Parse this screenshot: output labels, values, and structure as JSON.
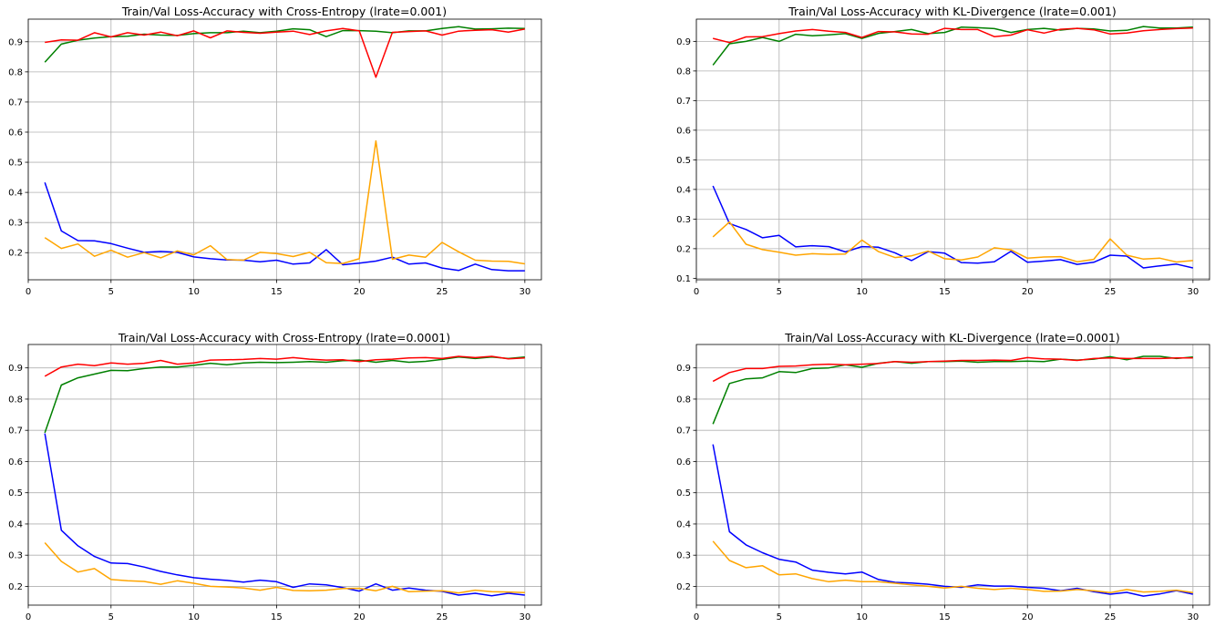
{
  "chart_data": [
    {
      "type": "line",
      "title": "Train/Val Loss-Accuracy with Cross-Entropy (lrate=0.001)",
      "xlim": [
        0,
        31
      ],
      "ylim": [
        0.11,
        0.975
      ],
      "xticks": [
        0,
        5,
        10,
        15,
        20,
        25,
        30
      ],
      "yticks": [
        0.2,
        0.3,
        0.4,
        0.5,
        0.6,
        0.7,
        0.8,
        0.9
      ],
      "grid": true,
      "x": [
        1,
        2,
        3,
        4,
        5,
        6,
        7,
        8,
        9,
        10,
        11,
        12,
        13,
        14,
        15,
        16,
        17,
        18,
        19,
        20,
        21,
        22,
        23,
        24,
        25,
        26,
        27,
        28,
        29,
        30
      ],
      "series": [
        {
          "color": "#008000",
          "values": [
            0.832,
            0.892,
            0.905,
            0.912,
            0.917,
            0.918,
            0.925,
            0.922,
            0.921,
            0.927,
            0.93,
            0.93,
            0.935,
            0.93,
            0.935,
            0.943,
            0.94,
            0.917,
            0.937,
            0.937,
            0.935,
            0.93,
            0.936,
            0.936,
            0.944,
            0.95,
            0.942,
            0.943,
            0.945,
            0.944
          ]
        },
        {
          "color": "#ff0000",
          "values": [
            0.898,
            0.906,
            0.905,
            0.93,
            0.916,
            0.93,
            0.922,
            0.932,
            0.92,
            0.936,
            0.913,
            0.936,
            0.931,
            0.928,
            0.932,
            0.935,
            0.924,
            0.936,
            0.944,
            0.936,
            0.782,
            0.931,
            0.934,
            0.936,
            0.922,
            0.935,
            0.938,
            0.94,
            0.932,
            0.942
          ]
        },
        {
          "color": "#0000ff",
          "values": [
            0.433,
            0.272,
            0.24,
            0.239,
            0.23,
            0.215,
            0.201,
            0.204,
            0.201,
            0.186,
            0.18,
            0.176,
            0.175,
            0.17,
            0.175,
            0.162,
            0.166,
            0.21,
            0.16,
            0.165,
            0.172,
            0.185,
            0.162,
            0.166,
            0.149,
            0.141,
            0.162,
            0.144,
            0.14,
            0.14
          ]
        },
        {
          "color": "#ffa500",
          "values": [
            0.25,
            0.214,
            0.229,
            0.188,
            0.208,
            0.185,
            0.2,
            0.183,
            0.206,
            0.193,
            0.223,
            0.177,
            0.175,
            0.201,
            0.197,
            0.187,
            0.201,
            0.167,
            0.164,
            0.18,
            0.571,
            0.178,
            0.192,
            0.185,
            0.234,
            0.203,
            0.175,
            0.172,
            0.171,
            0.163
          ]
        }
      ]
    },
    {
      "type": "line",
      "title": "Train/Val Loss-Accuracy with KL-Divergence (lrate=0.001)",
      "xlim": [
        0,
        31
      ],
      "ylim": [
        0.095,
        0.975
      ],
      "xticks": [
        0,
        5,
        10,
        15,
        20,
        25,
        30
      ],
      "yticks": [
        0.1,
        0.2,
        0.3,
        0.4,
        0.5,
        0.6,
        0.7,
        0.8,
        0.9
      ],
      "grid": true,
      "x": [
        1,
        2,
        3,
        4,
        5,
        6,
        7,
        8,
        9,
        10,
        11,
        12,
        13,
        14,
        15,
        16,
        17,
        18,
        19,
        20,
        21,
        22,
        23,
        24,
        25,
        26,
        27,
        28,
        29,
        30
      ],
      "series": [
        {
          "color": "#008000",
          "values": [
            0.82,
            0.892,
            0.9,
            0.913,
            0.9,
            0.924,
            0.919,
            0.922,
            0.926,
            0.91,
            0.927,
            0.933,
            0.94,
            0.926,
            0.93,
            0.948,
            0.946,
            0.943,
            0.93,
            0.94,
            0.944,
            0.938,
            0.944,
            0.942,
            0.935,
            0.937,
            0.95,
            0.945,
            0.945,
            0.948
          ]
        },
        {
          "color": "#ff0000",
          "values": [
            0.91,
            0.896,
            0.915,
            0.916,
            0.926,
            0.935,
            0.94,
            0.934,
            0.93,
            0.913,
            0.933,
            0.932,
            0.925,
            0.924,
            0.944,
            0.94,
            0.94,
            0.916,
            0.921,
            0.939,
            0.928,
            0.941,
            0.944,
            0.939,
            0.925,
            0.928,
            0.936,
            0.94,
            0.943,
            0.945
          ]
        },
        {
          "color": "#0000ff",
          "values": [
            0.412,
            0.285,
            0.265,
            0.237,
            0.245,
            0.206,
            0.21,
            0.207,
            0.189,
            0.207,
            0.205,
            0.186,
            0.16,
            0.19,
            0.185,
            0.153,
            0.151,
            0.156,
            0.191,
            0.154,
            0.158,
            0.163,
            0.147,
            0.154,
            0.178,
            0.175,
            0.135,
            0.142,
            0.148,
            0.135
          ]
        },
        {
          "color": "#ffa500",
          "values": [
            0.24,
            0.29,
            0.215,
            0.197,
            0.188,
            0.178,
            0.183,
            0.181,
            0.182,
            0.229,
            0.19,
            0.17,
            0.176,
            0.192,
            0.166,
            0.162,
            0.172,
            0.203,
            0.196,
            0.168,
            0.172,
            0.173,
            0.156,
            0.164,
            0.233,
            0.178,
            0.165,
            0.168,
            0.155,
            0.16
          ]
        }
      ]
    },
    {
      "type": "line",
      "title": "Train/Val Loss-Accuracy with Cross-Entropy (lrate=0.0001)",
      "xlim": [
        0,
        31
      ],
      "ylim": [
        0.14,
        0.975
      ],
      "xticks": [
        0,
        5,
        10,
        15,
        20,
        25,
        30
      ],
      "yticks": [
        0.2,
        0.3,
        0.4,
        0.5,
        0.6,
        0.7,
        0.8,
        0.9
      ],
      "grid": true,
      "x": [
        1,
        2,
        3,
        4,
        5,
        6,
        7,
        8,
        9,
        10,
        11,
        12,
        13,
        14,
        15,
        16,
        17,
        18,
        19,
        20,
        21,
        22,
        23,
        24,
        25,
        26,
        27,
        28,
        29,
        30
      ],
      "series": [
        {
          "color": "#008000",
          "values": [
            0.692,
            0.845,
            0.868,
            0.88,
            0.892,
            0.891,
            0.898,
            0.903,
            0.903,
            0.908,
            0.915,
            0.91,
            0.916,
            0.918,
            0.917,
            0.918,
            0.92,
            0.918,
            0.923,
            0.925,
            0.918,
            0.924,
            0.918,
            0.921,
            0.927,
            0.935,
            0.93,
            0.935,
            0.93,
            0.935
          ]
        },
        {
          "color": "#ff0000",
          "values": [
            0.873,
            0.903,
            0.912,
            0.907,
            0.916,
            0.912,
            0.915,
            0.924,
            0.912,
            0.916,
            0.925,
            0.926,
            0.927,
            0.93,
            0.928,
            0.933,
            0.928,
            0.925,
            0.926,
            0.92,
            0.926,
            0.928,
            0.932,
            0.933,
            0.93,
            0.937,
            0.933,
            0.937,
            0.929,
            0.932
          ]
        },
        {
          "color": "#0000ff",
          "values": [
            0.69,
            0.38,
            0.33,
            0.296,
            0.275,
            0.273,
            0.262,
            0.248,
            0.237,
            0.228,
            0.223,
            0.219,
            0.214,
            0.22,
            0.215,
            0.197,
            0.208,
            0.205,
            0.196,
            0.185,
            0.208,
            0.188,
            0.195,
            0.188,
            0.184,
            0.172,
            0.178,
            0.17,
            0.178,
            0.172
          ]
        },
        {
          "color": "#ffa500",
          "values": [
            0.34,
            0.28,
            0.246,
            0.257,
            0.222,
            0.218,
            0.216,
            0.207,
            0.218,
            0.21,
            0.2,
            0.198,
            0.195,
            0.188,
            0.197,
            0.187,
            0.186,
            0.188,
            0.193,
            0.194,
            0.186,
            0.2,
            0.183,
            0.185,
            0.186,
            0.179,
            0.188,
            0.183,
            0.182,
            0.18
          ]
        }
      ]
    },
    {
      "type": "line",
      "title": "Train/Val Loss-Accuracy with KL-Divergence (lrate=0.0001)",
      "xlim": [
        0,
        31
      ],
      "ylim": [
        0.14,
        0.975
      ],
      "xticks": [
        0,
        5,
        10,
        15,
        20,
        25,
        30
      ],
      "yticks": [
        0.2,
        0.3,
        0.4,
        0.5,
        0.6,
        0.7,
        0.8,
        0.9
      ],
      "grid": true,
      "x": [
        1,
        2,
        3,
        4,
        5,
        6,
        7,
        8,
        9,
        10,
        11,
        12,
        13,
        14,
        15,
        16,
        17,
        18,
        19,
        20,
        21,
        22,
        23,
        24,
        25,
        26,
        27,
        28,
        29,
        30
      ],
      "series": [
        {
          "color": "#008000",
          "values": [
            0.72,
            0.85,
            0.865,
            0.868,
            0.888,
            0.885,
            0.898,
            0.9,
            0.91,
            0.902,
            0.915,
            0.92,
            0.915,
            0.92,
            0.92,
            0.922,
            0.918,
            0.92,
            0.92,
            0.922,
            0.92,
            0.928,
            0.925,
            0.928,
            0.936,
            0.926,
            0.937,
            0.937,
            0.93,
            0.935
          ]
        },
        {
          "color": "#ff0000",
          "values": [
            0.857,
            0.885,
            0.898,
            0.898,
            0.905,
            0.906,
            0.91,
            0.912,
            0.91,
            0.912,
            0.914,
            0.92,
            0.918,
            0.92,
            0.922,
            0.924,
            0.924,
            0.925,
            0.924,
            0.933,
            0.929,
            0.928,
            0.924,
            0.93,
            0.932,
            0.93,
            0.93,
            0.93,
            0.932,
            0.932
          ]
        },
        {
          "color": "#0000ff",
          "values": [
            0.655,
            0.375,
            0.333,
            0.308,
            0.287,
            0.278,
            0.252,
            0.245,
            0.24,
            0.246,
            0.222,
            0.213,
            0.211,
            0.207,
            0.2,
            0.197,
            0.205,
            0.201,
            0.201,
            0.197,
            0.194,
            0.186,
            0.194,
            0.183,
            0.175,
            0.181,
            0.169,
            0.176,
            0.186,
            0.175
          ]
        },
        {
          "color": "#ffa500",
          "values": [
            0.345,
            0.283,
            0.26,
            0.266,
            0.237,
            0.24,
            0.225,
            0.215,
            0.22,
            0.215,
            0.215,
            0.21,
            0.205,
            0.2,
            0.195,
            0.2,
            0.194,
            0.19,
            0.194,
            0.19,
            0.184,
            0.185,
            0.19,
            0.186,
            0.18,
            0.19,
            0.182,
            0.184,
            0.188,
            0.18
          ]
        }
      ]
    }
  ]
}
